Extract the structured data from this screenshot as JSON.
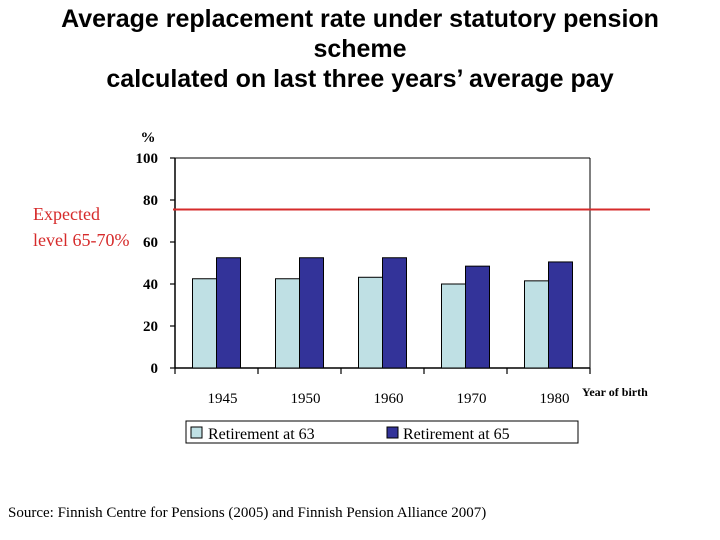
{
  "title_lines": [
    "Average replacement rate under statutory pension",
    "scheme",
    "calculated on last three years’ average pay"
  ],
  "annotation": {
    "lines": [
      "Expected",
      "level 65-70%"
    ],
    "color": "#d62b2b"
  },
  "source": "Source: Finnish Centre for Pensions (2005) and Finnish Pension Alliance 2007)",
  "chart_data": {
    "type": "bar",
    "ylabel": "%",
    "xlabel": "Year of birth",
    "ylim": [
      0,
      100
    ],
    "yticks": [
      0,
      20,
      40,
      60,
      80,
      100
    ],
    "categories": [
      "1945",
      "1950",
      "1960",
      "1970",
      "1980"
    ],
    "series": [
      {
        "name": "Retirement at 63",
        "values": [
          42.5,
          42.5,
          43.2,
          40.0,
          41.5
        ],
        "color": "#bfe0e4"
      },
      {
        "name": "Retirement at 65",
        "values": [
          52.5,
          52.5,
          52.5,
          48.5,
          50.5
        ],
        "color": "#333399"
      }
    ],
    "reference_line": {
      "value": 75.5
    },
    "legend_position": "bottom",
    "grid": false
  }
}
